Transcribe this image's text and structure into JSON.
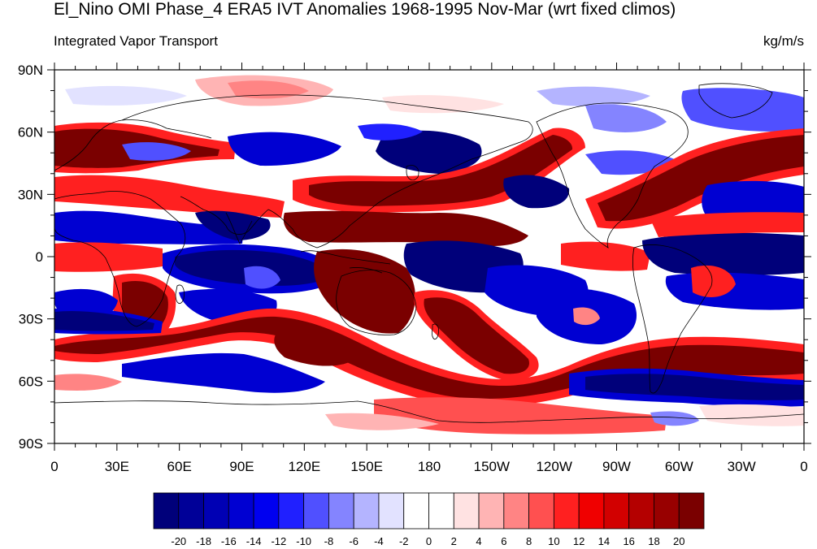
{
  "title": "El_Nino OMI Phase_4 ERA5 IVT Anomalies 1968-1995 Nov-Mar (wrt fixed climos)",
  "subtitle_left": "Integrated Vapor Transport",
  "subtitle_right": "kg/m/s",
  "lat_labels": [
    "90N",
    "60N",
    "30N",
    "0",
    "30S",
    "60S",
    "90S"
  ],
  "lon_labels": [
    "0",
    "30E",
    "60E",
    "90E",
    "120E",
    "150E",
    "180",
    "150W",
    "120W",
    "90W",
    "60W",
    "30W",
    "0"
  ],
  "colorbar": {
    "levels": [
      "-20",
      "-18",
      "-16",
      "-14",
      "-12",
      "-10",
      "-8",
      "-6",
      "-4",
      "-2",
      "0",
      "2",
      "4",
      "6",
      "8",
      "10",
      "12",
      "14",
      "16",
      "18",
      "20"
    ],
    "colors": [
      "#00007a",
      "#000098",
      "#0000b4",
      "#0000d2",
      "#0000f0",
      "#2020ff",
      "#5050ff",
      "#8484ff",
      "#b4b4ff",
      "#e2e2ff",
      "#ffffff",
      "#ffffff",
      "#ffe2e2",
      "#ffb4b4",
      "#ff8484",
      "#ff5050",
      "#ff2020",
      "#f00000",
      "#d20000",
      "#b40000",
      "#980000",
      "#7a0000"
    ]
  }
}
